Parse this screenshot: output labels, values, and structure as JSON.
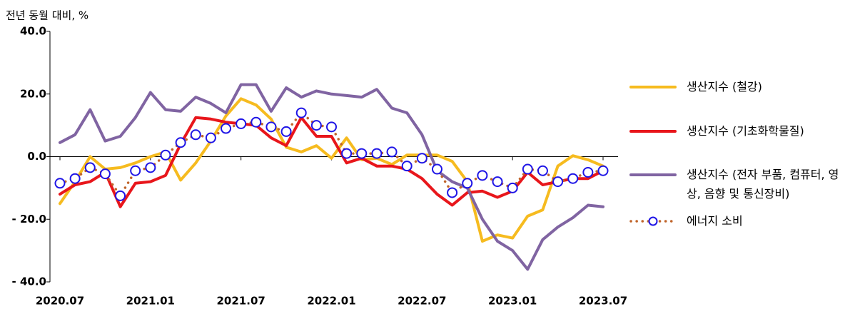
{
  "chart_data": {
    "type": "line",
    "y_label": "전년 동월 대비, %",
    "categories": [
      "2020.07",
      null,
      null,
      null,
      null,
      null,
      "2021.01",
      null,
      null,
      null,
      null,
      null,
      "2021.07",
      null,
      null,
      null,
      null,
      null,
      "2022.01",
      null,
      null,
      null,
      null,
      null,
      "2022.07",
      null,
      null,
      null,
      null,
      null,
      "2023.01",
      null,
      null,
      null,
      null,
      null,
      "2023.07"
    ],
    "ylim": [
      -40,
      40
    ],
    "yticks": [
      {
        "value": 40,
        "label": "40.0"
      },
      {
        "value": 20,
        "label": "20.0"
      },
      {
        "value": 0,
        "label": "0.0"
      },
      {
        "value": -20,
        "label": "- 20.0"
      },
      {
        "value": -40,
        "label": "- 40.0"
      }
    ],
    "series": [
      {
        "name": "생산지수 (철강)",
        "color": "#f6bb1f",
        "values": [
          -15,
          -8,
          0,
          -4,
          -3.5,
          -2,
          0,
          1.5,
          -7.5,
          -2,
          5,
          13,
          18.5,
          16.5,
          12,
          3,
          1.5,
          3.5,
          -0.5,
          6,
          -1,
          -0.5,
          -2.5,
          0.5,
          0.5,
          0.5,
          -1.5,
          -8,
          -27,
          -25,
          -26,
          -19,
          -17,
          -3,
          0.3,
          -1,
          -3
        ]
      },
      {
        "name": "생산지수 (기초화학물질)",
        "color": "#e8161b",
        "values": [
          -12,
          -9,
          -8,
          -5,
          -16,
          -8.5,
          -8,
          -6,
          4,
          12.5,
          12,
          11,
          10.5,
          10,
          6,
          3.5,
          12.5,
          6.5,
          6.5,
          -2,
          -0.5,
          -3,
          -3,
          -4,
          -7,
          -12,
          -15.5,
          -11.5,
          -11,
          -13,
          -11,
          -5,
          -9,
          -8,
          -7,
          -7,
          -4.5
        ]
      },
      {
        "name": "생산지수 (전자 부품, 컴퓨터, 영상, 음향 및 통신장비)",
        "color": "#8064a2",
        "values": [
          4.5,
          7,
          15,
          5,
          6.5,
          12.5,
          20.5,
          15,
          14.5,
          19,
          17,
          14,
          23,
          23,
          14.5,
          22,
          19,
          21,
          20,
          19.5,
          19,
          21.5,
          15.5,
          14,
          7,
          -4.5,
          -8,
          -10,
          -20,
          -27,
          -30,
          -36,
          -26.5,
          -22.5,
          -19.5,
          -15.5,
          -16
        ]
      },
      {
        "name": "에너지 소비",
        "color": "#c0642a",
        "marker_color": "#1e14e6",
        "values": [
          -8.5,
          -7,
          -3.5,
          -5.5,
          -12.5,
          -4.5,
          -3.5,
          0.5,
          4.5,
          7,
          6,
          9,
          10.5,
          11,
          9.5,
          8,
          14,
          10,
          9.5,
          1,
          1,
          1,
          1.5,
          -3,
          -0.5,
          -4,
          -11.5,
          -8.5,
          -6,
          -8,
          -10,
          -4,
          -4.5,
          -8,
          -7,
          -5,
          -4.5
        ]
      }
    ]
  }
}
